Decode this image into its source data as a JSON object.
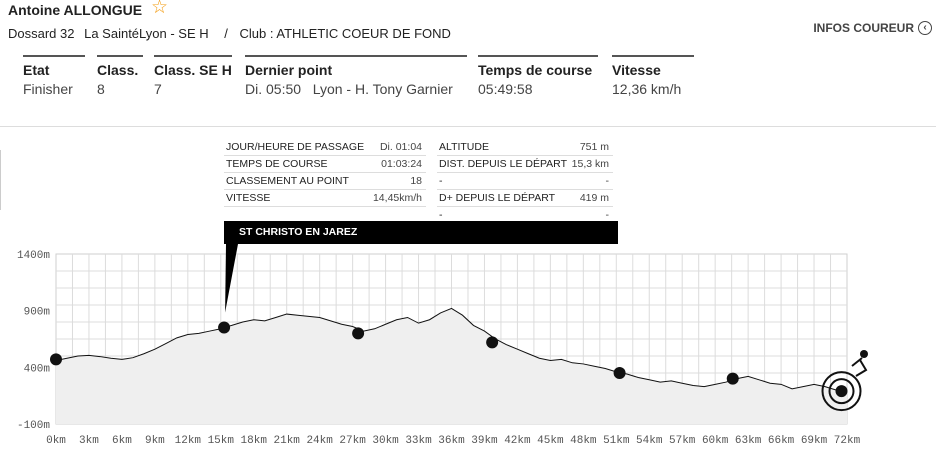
{
  "runner": {
    "name": "Antoine ALLONGUE",
    "bib": "Dossard 32",
    "race": "La SaintéLyon - SE H",
    "separator": "/",
    "club": "Club : ATHLETIC COEUR DE FOND",
    "infos_label": "INFOS COUREUR"
  },
  "icons": {
    "favorite": "star-icon",
    "infos": "arrow-circle-left-icon"
  },
  "stats": [
    {
      "label": "Etat",
      "value": "Finisher"
    },
    {
      "label": "Class.",
      "value": "8"
    },
    {
      "label": "Class. SE H",
      "value": "7"
    },
    {
      "label": "Dernier point",
      "value": "Di. 05:50   Lyon - H. Tony Garnier"
    },
    {
      "label": "Temps de course",
      "value": "05:49:58"
    },
    {
      "label": "Vitesse",
      "value": "12,36 km/h"
    }
  ],
  "tooltip": {
    "left": [
      {
        "key": "JOUR/HEURE DE PASSAGE",
        "value": "Di. 01:04"
      },
      {
        "key": "TEMPS DE COURSE",
        "value": "01:03:24"
      },
      {
        "key": "CLASSEMENT AU POINT",
        "value": "18"
      },
      {
        "key": "VITESSE",
        "value": "14,45km/h"
      }
    ],
    "right": [
      {
        "key": "ALTITUDE",
        "value": "751 m"
      },
      {
        "key": "DIST. DEPUIS LE DÉPART",
        "value": "15,3 km"
      },
      {
        "key": "-",
        "value": "-"
      },
      {
        "key": "D+ DEPUIS LE DÉPART",
        "value": "419 m"
      },
      {
        "key": "-",
        "value": "-"
      }
    ],
    "place": "ST CHRISTO EN JAREZ"
  },
  "chart_data": {
    "type": "area",
    "xlabel": "",
    "ylabel": "",
    "x_ticks": [
      "0km",
      "3km",
      "6km",
      "9km",
      "12km",
      "15km",
      "18km",
      "21km",
      "24km",
      "27km",
      "30km",
      "33km",
      "36km",
      "39km",
      "42km",
      "45km",
      "48km",
      "51km",
      "54km",
      "57km",
      "60km",
      "63km",
      "66km",
      "69km",
      "72km"
    ],
    "y_ticks": [
      "1400m",
      "900m",
      "400m",
      "-100m"
    ],
    "xlim": [
      0,
      72
    ],
    "ylim": [
      -100,
      1400
    ],
    "profile": [
      [
        0,
        460
      ],
      [
        1,
        480
      ],
      [
        2,
        500
      ],
      [
        3,
        505
      ],
      [
        4,
        495
      ],
      [
        5,
        480
      ],
      [
        6,
        470
      ],
      [
        7,
        485
      ],
      [
        8,
        520
      ],
      [
        9,
        560
      ],
      [
        10,
        610
      ],
      [
        11,
        660
      ],
      [
        12,
        690
      ],
      [
        13,
        700
      ],
      [
        14,
        720
      ],
      [
        15,
        740
      ],
      [
        15.3,
        751
      ],
      [
        16,
        770
      ],
      [
        17,
        800
      ],
      [
        18,
        820
      ],
      [
        19,
        810
      ],
      [
        20,
        840
      ],
      [
        21,
        870
      ],
      [
        22,
        860
      ],
      [
        23,
        850
      ],
      [
        24,
        840
      ],
      [
        25,
        810
      ],
      [
        26,
        780
      ],
      [
        27,
        760
      ],
      [
        28,
        720
      ],
      [
        29,
        740
      ],
      [
        30,
        780
      ],
      [
        31,
        820
      ],
      [
        32,
        840
      ],
      [
        33,
        790
      ],
      [
        34,
        820
      ],
      [
        35,
        880
      ],
      [
        36,
        920
      ],
      [
        37,
        860
      ],
      [
        38,
        770
      ],
      [
        39,
        720
      ],
      [
        40,
        650
      ],
      [
        41,
        600
      ],
      [
        42,
        560
      ],
      [
        43,
        520
      ],
      [
        44,
        480
      ],
      [
        45,
        460
      ],
      [
        46,
        470
      ],
      [
        47,
        440
      ],
      [
        48,
        430
      ],
      [
        49,
        410
      ],
      [
        50,
        390
      ],
      [
        51,
        360
      ],
      [
        52,
        340
      ],
      [
        53,
        310
      ],
      [
        54,
        290
      ],
      [
        55,
        270
      ],
      [
        56,
        280
      ],
      [
        57,
        260
      ],
      [
        58,
        240
      ],
      [
        59,
        230
      ],
      [
        60,
        250
      ],
      [
        61,
        270
      ],
      [
        62,
        300
      ],
      [
        63,
        320
      ],
      [
        64,
        290
      ],
      [
        65,
        260
      ],
      [
        66,
        250
      ],
      [
        67,
        210
      ],
      [
        68,
        230
      ],
      [
        69,
        250
      ],
      [
        70,
        230
      ],
      [
        71,
        200
      ],
      [
        72,
        190
      ]
    ],
    "checkpoints": [
      {
        "km": 0,
        "alt": 470
      },
      {
        "km": 15.3,
        "alt": 751
      },
      {
        "km": 27.5,
        "alt": 700
      },
      {
        "km": 39.7,
        "alt": 620
      },
      {
        "km": 51.3,
        "alt": 350
      },
      {
        "km": 61.6,
        "alt": 300
      },
      {
        "km": 71.5,
        "alt": 190
      }
    ],
    "selected_checkpoint": 1,
    "grid": true
  }
}
